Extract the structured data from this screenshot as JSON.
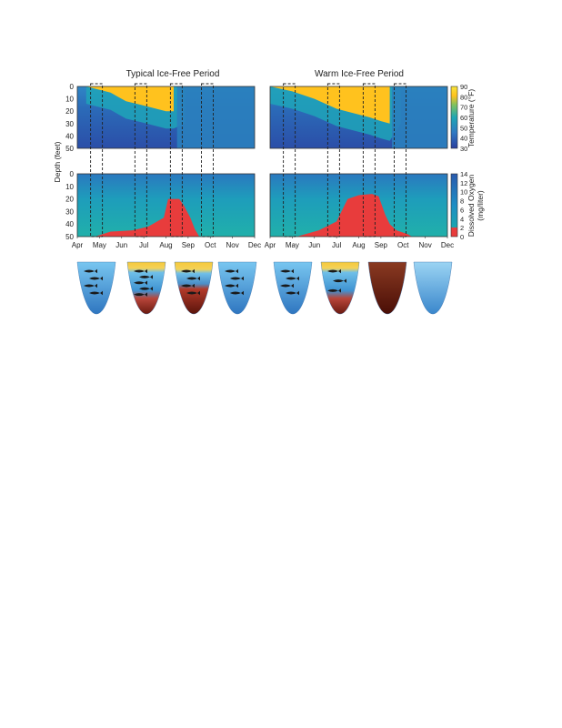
{
  "chart_data": [
    {
      "type": "heatmap",
      "title": "Typical Ice-Free Period",
      "variable": "Temperature",
      "ylabel": "Depth (feet)",
      "ylim": [
        0,
        50
      ],
      "y_ticks": [
        "0",
        "10",
        "20",
        "30",
        "40",
        "50"
      ],
      "colorbar_range": [
        30,
        90
      ],
      "stratification": {
        "surface_temp_F": 80,
        "bottom_temp_F": 45,
        "thermocline_depth_ft": [
          [
            4.4,
            0
          ],
          [
            5.5,
            5
          ],
          [
            6.2,
            12
          ],
          [
            6.9,
            15
          ],
          [
            8,
            20
          ],
          [
            8.35,
            20
          ]
        ],
        "turnover_month": 8.4
      },
      "windows": [
        4.6,
        6.6,
        8.2,
        9.6
      ]
    },
    {
      "type": "heatmap",
      "title": "Warm Ice-Free Period",
      "variable": "Temperature",
      "ylim": [
        0,
        50
      ],
      "y_ticks": [
        "0",
        "10",
        "20",
        "30",
        "40",
        "50"
      ],
      "colorbar_range": [
        30,
        90
      ],
      "stratification": {
        "surface_temp_F": 80,
        "bottom_temp_F": 45,
        "thermocline_depth_ft": [
          [
            4,
            0
          ],
          [
            5,
            4
          ],
          [
            6,
            10
          ],
          [
            7,
            18
          ],
          [
            8.5,
            25
          ],
          [
            9,
            28
          ],
          [
            9.4,
            30
          ]
        ],
        "turnover_month": 9.4
      },
      "windows": [
        4.6,
        6.6,
        8.2,
        9.6
      ]
    },
    {
      "type": "heatmap",
      "title": "",
      "variable": "Dissolved Oxygen",
      "xlabel": "",
      "ylabel": "Depth (feet)",
      "ylim": [
        0,
        50
      ],
      "y_ticks": [
        "0",
        "10",
        "20",
        "30",
        "40",
        "50"
      ],
      "x_ticks": [
        "Apr",
        "May",
        "Jun",
        "Jul",
        "Aug",
        "Sep",
        "Oct",
        "Nov",
        "Dec"
      ],
      "x_range_months": [
        4,
        12
      ],
      "colorbar_range": [
        0,
        14
      ],
      "low_oxygen_top_depth_ft": [
        [
          4.8,
          50
        ],
        [
          5.5,
          46
        ],
        [
          6.5,
          45
        ],
        [
          7.2,
          42
        ],
        [
          7.6,
          38
        ],
        [
          7.9,
          35
        ],
        [
          8.1,
          20
        ],
        [
          8.6,
          20
        ],
        [
          8.8,
          25
        ],
        [
          9.1,
          35
        ],
        [
          9.3,
          44
        ],
        [
          9.5,
          50
        ]
      ],
      "windows": [
        4.6,
        6.6,
        8.2,
        9.6
      ]
    },
    {
      "type": "heatmap",
      "title": "",
      "variable": "Dissolved Oxygen",
      "ylim": [
        0,
        50
      ],
      "x_ticks": [
        "Apr",
        "May",
        "Jun",
        "Jul",
        "Aug",
        "Sep",
        "Oct",
        "Nov",
        "Dec"
      ],
      "x_range_months": [
        4,
        12
      ],
      "colorbar_range": [
        0,
        14
      ],
      "low_oxygen_top_depth_ft": [
        [
          5.2,
          50
        ],
        [
          6.2,
          45
        ],
        [
          7,
          38
        ],
        [
          7.5,
          20
        ],
        [
          8,
          17
        ],
        [
          8.6,
          16
        ],
        [
          8.9,
          18
        ],
        [
          9.2,
          33
        ],
        [
          9.4,
          40
        ],
        [
          9.7,
          45
        ],
        [
          10.2,
          48
        ],
        [
          10.4,
          50
        ]
      ],
      "windows": [
        4.6,
        6.6,
        8.2,
        9.6
      ]
    }
  ],
  "colorbars": {
    "temperature": {
      "label": "Temperature (°F)",
      "ticks": [
        "90",
        "80",
        "70",
        "60",
        "50",
        "40",
        "30"
      ]
    },
    "oxygen": {
      "label_line1": "Dissolved Oxygen",
      "label_line2": "(mg/liter)",
      "ticks": [
        "14",
        "12",
        "10",
        "8",
        "6",
        "4",
        "2",
        "0"
      ]
    }
  },
  "colors": {
    "cold": "#2b4ea8",
    "cool": "#2f7fc1",
    "mid": "#1ea4b8",
    "warm": "#ffc21e",
    "hot": "#f6d13a",
    "low_oxygen": "#e83c3c",
    "lake_top": "#72c1ef",
    "lake_bottom": "#2f76c0",
    "sediment": "#6b1a10",
    "fish": "#1a1a1a",
    "window_box": "#222222"
  },
  "lake_cross_sections": {
    "typical": [
      {
        "month": "May",
        "state": "mixed-oxygenated",
        "fish_count": 4
      },
      {
        "month": "Jul",
        "state": "stratified",
        "fish_count": 5
      },
      {
        "month": "Sep",
        "state": "stratified-hypoxic",
        "fish_count": 4
      },
      {
        "month": "Nov",
        "state": "mixed-oxygenated",
        "fish_count": 4
      }
    ],
    "warm": [
      {
        "month": "May",
        "state": "mixed-oxygenated",
        "fish_count": 4
      },
      {
        "month": "Jul",
        "state": "stratified",
        "fish_count": 3
      },
      {
        "month": "Sep",
        "state": "anoxic",
        "fish_count": 0
      },
      {
        "month": "Nov",
        "state": "mixed-no-fish",
        "fish_count": 0
      }
    ]
  }
}
